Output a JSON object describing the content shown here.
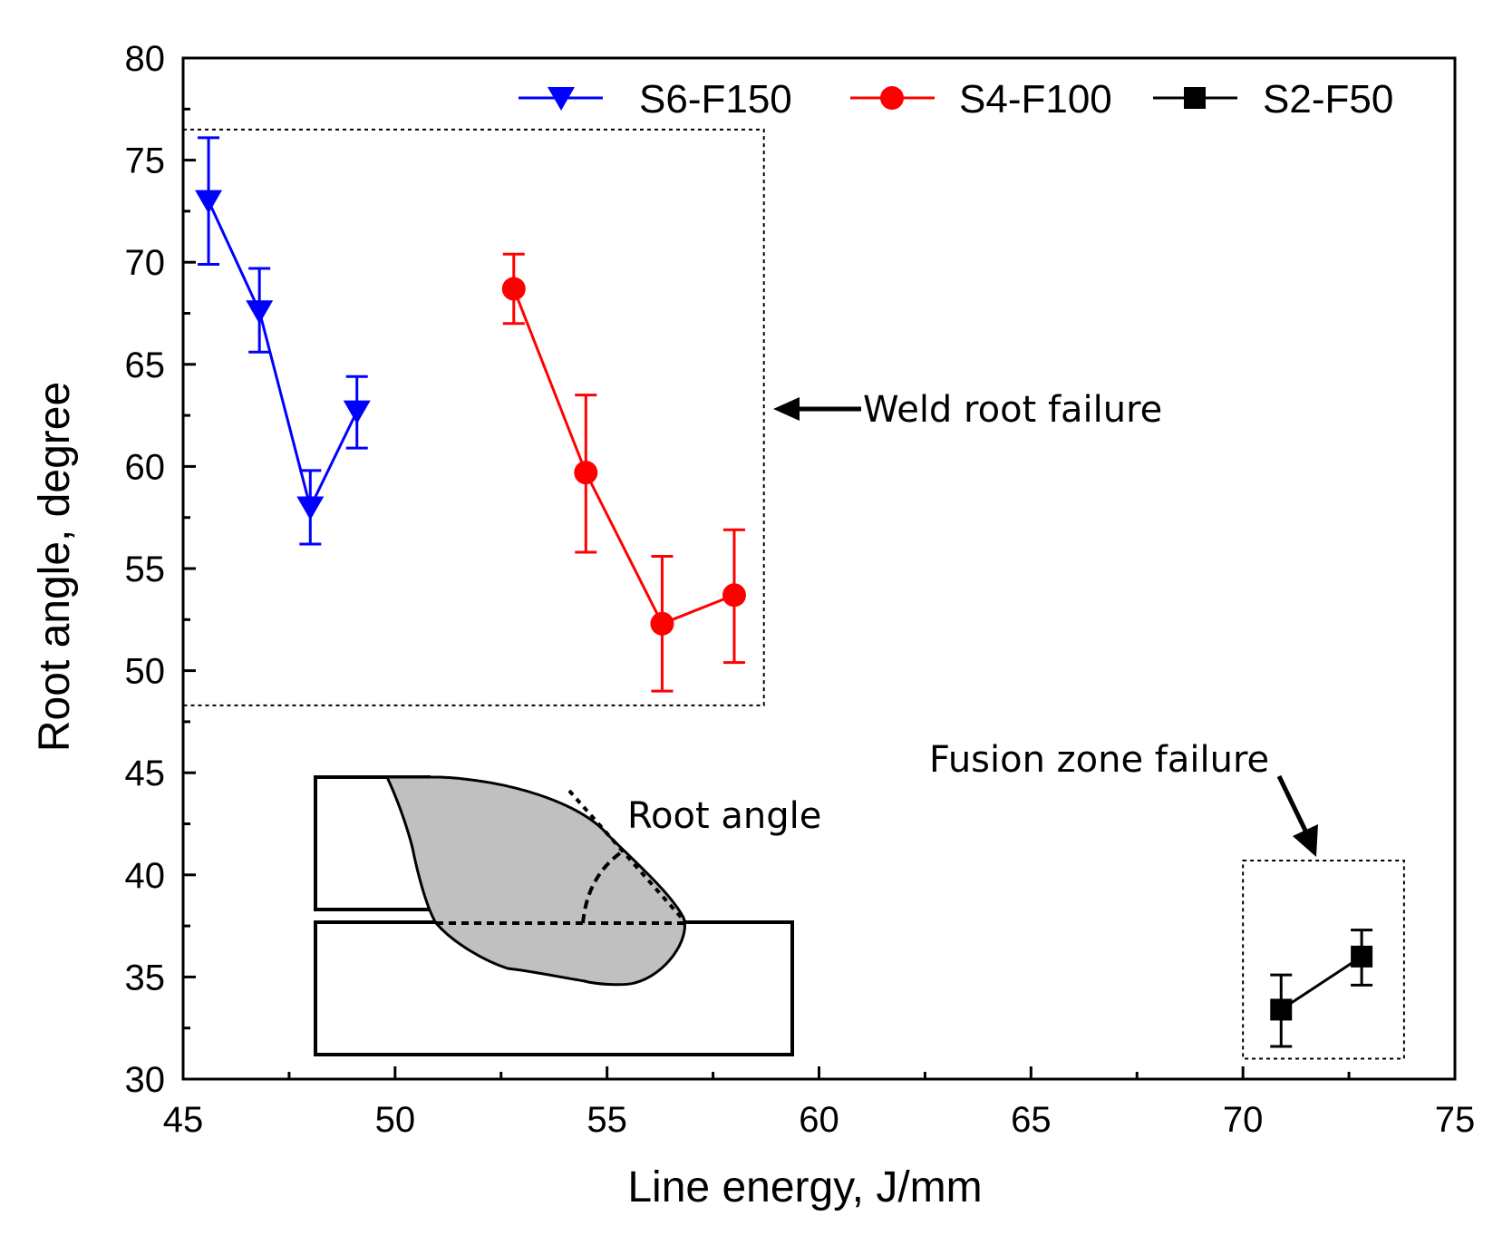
{
  "chart_data": {
    "type": "scatter",
    "title": "",
    "xlabel": "Line energy, J/mm",
    "ylabel": "Root angle, degree",
    "xlim": [
      45,
      75
    ],
    "ylim": [
      30,
      80
    ],
    "xticks": [
      "45",
      "50",
      "55",
      "60",
      "65",
      "70",
      "75"
    ],
    "yticks": [
      "30",
      "35",
      "40",
      "45",
      "50",
      "55",
      "60",
      "65",
      "70",
      "75",
      "80"
    ],
    "grid": false,
    "legend_position": "top-right",
    "series": [
      {
        "name": "S6-F150",
        "color": "#0000ff",
        "marker": "triangle-down",
        "x": [
          45.6,
          46.8,
          48.0,
          49.1
        ],
        "y": [
          73.0,
          67.6,
          58.0,
          62.7
        ],
        "err_low": [
          3.1,
          2.0,
          1.8,
          1.8
        ],
        "err_high": [
          3.1,
          2.1,
          1.8,
          1.7
        ]
      },
      {
        "name": "S4-F100",
        "color": "#ff0000",
        "marker": "circle",
        "x": [
          52.8,
          54.5,
          56.3,
          58.0
        ],
        "y": [
          68.7,
          59.7,
          52.3,
          53.7
        ],
        "err_low": [
          1.7,
          3.9,
          3.3,
          3.3
        ],
        "err_high": [
          1.7,
          3.8,
          3.3,
          3.2
        ]
      },
      {
        "name": "S2-F50",
        "color": "#000000",
        "marker": "square",
        "x": [
          70.9,
          72.8
        ],
        "y": [
          33.4,
          36.0
        ],
        "err_low": [
          1.8,
          1.4
        ],
        "err_high": [
          1.7,
          1.3
        ]
      }
    ],
    "annotations": [
      {
        "text": "Weld root failure",
        "id": "weld-root"
      },
      {
        "text": "Fusion zone failure",
        "id": "fusion-zone"
      },
      {
        "text": "Root angle",
        "id": "root-angle"
      }
    ]
  }
}
